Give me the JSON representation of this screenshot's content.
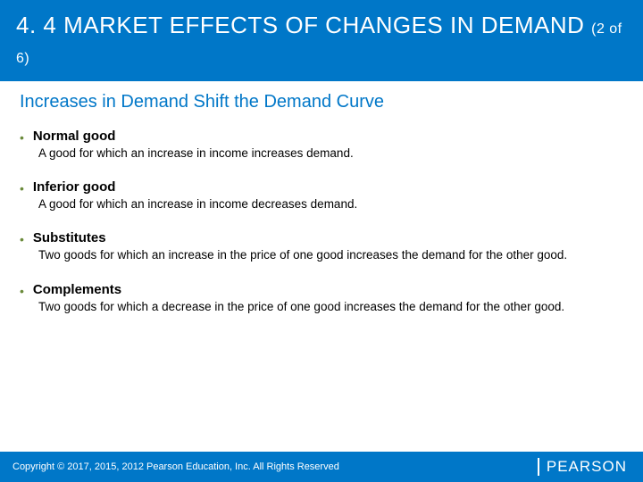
{
  "colors": {
    "header_bg": "#0077c8",
    "subtitle": "#0077c8",
    "bullet": "#6a8a3a",
    "footer_bg": "#0077c8",
    "text": "#000000",
    "white": "#ffffff"
  },
  "header": {
    "title_main": "4. 4 MARKET EFFECTS OF CHANGES IN DEMAND ",
    "title_sub": "(2 of 6)"
  },
  "subtitle": "Increases in Demand Shift the Demand Curve",
  "items": [
    {
      "term": "Normal good",
      "definition": "A good for which an increase in income increases demand."
    },
    {
      "term": "Inferior good",
      "definition": "A good for which an increase in income decreases demand."
    },
    {
      "term": "Substitutes",
      "definition": "Two goods for which an increase in the price of one good increases the demand for the other good."
    },
    {
      "term": "Complements",
      "definition": "Two goods for which a decrease in the price of one good increases the demand for the other good."
    }
  ],
  "footer": {
    "copyright": "Copyright © 2017, 2015, 2012 Pearson Education, Inc. All Rights Reserved",
    "logo": "PEARSON"
  }
}
